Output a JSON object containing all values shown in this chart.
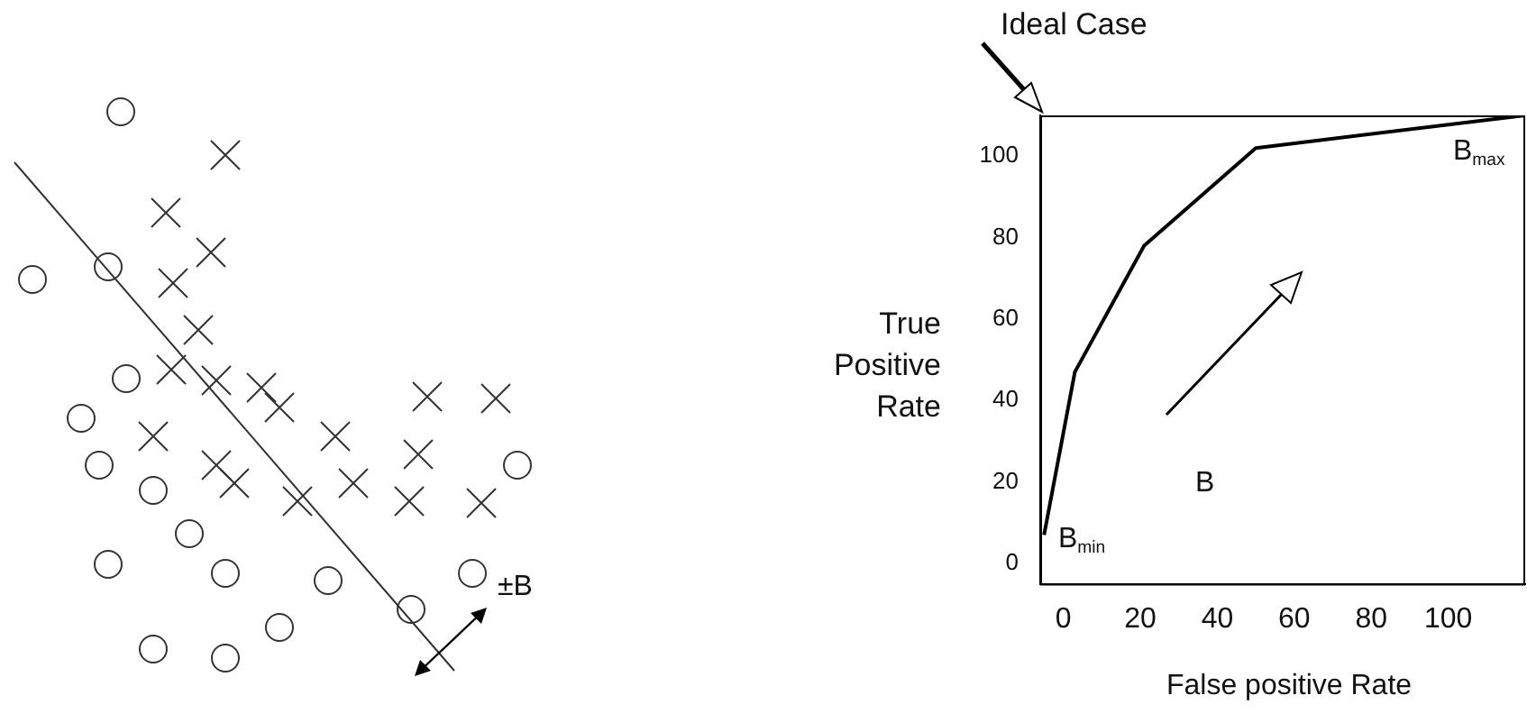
{
  "chart_data": {
    "type": "line",
    "xlabel": "False positive Rate",
    "ylabel": "True Positive Rate",
    "x": [
      -5,
      3,
      21,
      50,
      120
    ],
    "series": [
      {
        "color": "#000000",
        "values": [
          7,
          47,
          78,
          102,
          110
        ]
      }
    ],
    "xlim": [
      -6,
      120
    ],
    "xticks": [
      0,
      20,
      40,
      60,
      80,
      100
    ],
    "ylim": [
      -5,
      110
    ],
    "yticks": [
      0,
      20,
      40,
      60,
      80,
      100
    ],
    "grid": false,
    "legend": false,
    "marker": "none",
    "line_style": "solid",
    "annotations": [
      "Ideal Case",
      "B$_{max}$",
      "B",
      "B$_{min}$",
      "±B"
    ]
  }
}
